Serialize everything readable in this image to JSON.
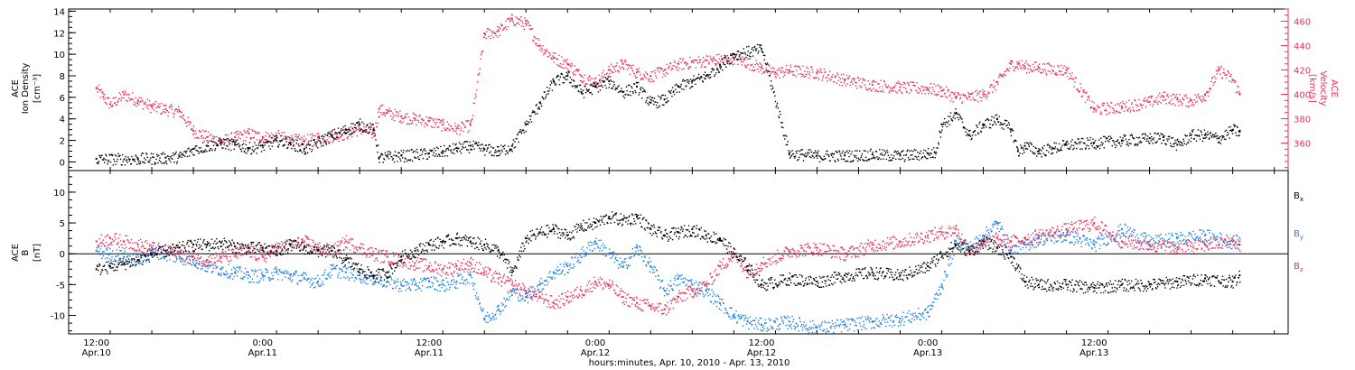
{
  "colors": {
    "black_series": "#000000",
    "velocity": "#e8315f",
    "by": "#1a7fe0",
    "bz": "#e8315f",
    "frame": "#000000"
  },
  "chart_data": [
    {
      "type": "scatter",
      "panel": "top",
      "ylabel_left": [
        "ACE",
        "Ion Density",
        "[cm⁻³]"
      ],
      "ylabel_right": [
        "ACE",
        "Velocity",
        "[km/s]"
      ],
      "xlim_hours": [
        -2,
        86
      ],
      "ylim_left": [
        -0.8,
        14.2
      ],
      "ylim_right": [
        337.5,
        470
      ],
      "yticks_left": [
        "0",
        "2",
        "4",
        "6",
        "8",
        "10",
        "12",
        "14"
      ],
      "yticks_right": [
        "360",
        "380",
        "400",
        "420",
        "440",
        "460"
      ],
      "grid": false,
      "series": [
        {
          "axis": "left",
          "color": "#000000",
          "x": [
            0,
            3,
            5,
            6,
            7,
            8,
            9,
            10,
            11,
            12,
            13,
            14,
            15,
            17,
            18,
            19,
            20,
            20.4,
            21,
            22,
            24,
            25,
            26,
            27,
            28,
            29,
            30,
            31,
            32,
            33,
            34,
            35,
            36,
            37,
            38,
            39,
            40,
            41,
            42,
            43,
            44,
            45,
            46,
            48,
            50,
            52,
            54,
            56,
            58,
            60,
            60.5,
            61,
            62,
            63,
            64,
            65,
            66,
            66.5,
            67,
            68,
            69,
            70,
            72,
            74,
            76,
            77,
            78,
            79,
            80,
            81,
            82,
            82.5
          ],
          "y": [
            0.3,
            0.3,
            0.4,
            0.5,
            1.2,
            1.5,
            1.8,
            1.6,
            1.3,
            1.5,
            2.0,
            1.8,
            1.2,
            2.5,
            3.0,
            3.5,
            3.0,
            0.4,
            0.5,
            0.6,
            0.8,
            1.0,
            1.3,
            1.5,
            1.2,
            1.0,
            1.5,
            3.5,
            5.5,
            7.5,
            8.0,
            6.5,
            7.0,
            7.5,
            6.5,
            7.0,
            5.5,
            5.8,
            7.0,
            7.5,
            8.0,
            9.0,
            10.0,
            10.5,
            0.8,
            0.6,
            0.6,
            0.7,
            0.6,
            0.8,
            0.9,
            3.5,
            4.5,
            2.5,
            3.5,
            4.0,
            3.0,
            1.0,
            1.5,
            1.0,
            1.3,
            1.6,
            1.8,
            2.0,
            2.2,
            2.3,
            1.6,
            2.5,
            2.5,
            2.2,
            3.0,
            2.8
          ]
        },
        {
          "axis": "right",
          "color": "#e8315f",
          "x": [
            0,
            0.5,
            1,
            2,
            3,
            4,
            5,
            6,
            7,
            8,
            9,
            10,
            11,
            12,
            13,
            14,
            15,
            16,
            17,
            18,
            19,
            20,
            20.4,
            21,
            22,
            23,
            24,
            25,
            26,
            27,
            28,
            29,
            30,
            31,
            32,
            33,
            34,
            35,
            36,
            37,
            38,
            39,
            40,
            41,
            42,
            44,
            46,
            48,
            49,
            50,
            52,
            54,
            56,
            58,
            60,
            61,
            62,
            63,
            64,
            65,
            66,
            66.5,
            67,
            68,
            70,
            72,
            74,
            76,
            77,
            78,
            79,
            80,
            81,
            82,
            82.5
          ],
          "y": [
            405,
            398,
            392,
            400,
            395,
            390,
            388,
            386,
            370,
            365,
            362,
            365,
            368,
            365,
            366,
            363,
            362,
            365,
            366,
            368,
            372,
            368,
            388,
            385,
            382,
            380,
            378,
            375,
            372,
            375,
            450,
            452,
            462,
            458,
            440,
            430,
            425,
            415,
            410,
            420,
            425,
            418,
            415,
            420,
            425,
            428,
            430,
            422,
            418,
            420,
            418,
            412,
            408,
            406,
            405,
            403,
            398,
            398,
            400,
            410,
            425,
            425,
            423,
            422,
            420,
            388,
            390,
            394,
            398,
            396,
            395,
            400,
            420,
            412,
            400
          ]
        }
      ]
    },
    {
      "type": "scatter",
      "panel": "bottom",
      "ylabel_left": [
        "ACE",
        "B",
        "[nT]"
      ],
      "xlim_hours": [
        -2,
        86
      ],
      "ylim_left": [
        -13,
        13.5
      ],
      "yticks_left": [
        "-10",
        "-5",
        "0",
        "5",
        "10"
      ],
      "zero_line": true,
      "grid": false,
      "legend": [
        "Bx",
        "By",
        "Bz"
      ],
      "legend_position": "right",
      "series": [
        {
          "name": "Bx",
          "color": "#000000",
          "x": [
            0,
            1,
            2,
            3,
            4,
            5,
            6,
            7,
            8,
            9,
            10,
            11,
            12,
            13,
            14,
            15,
            16,
            17,
            18,
            19,
            20,
            21,
            22,
            23,
            24,
            25,
            26,
            27,
            28,
            29,
            30,
            31,
            32,
            33,
            34,
            35,
            36,
            37,
            38,
            39,
            40,
            41,
            42,
            43,
            44,
            45,
            46,
            47,
            48,
            50,
            52,
            54,
            56,
            58,
            60,
            61,
            62,
            63,
            64,
            65,
            66,
            67,
            68,
            70,
            72,
            74,
            76,
            78,
            80,
            82,
            82.5
          ],
          "y": [
            -2.5,
            -2.0,
            -1.5,
            -1.0,
            0.0,
            0.5,
            1.0,
            1.5,
            1.5,
            1.8,
            1.2,
            1.0,
            1.0,
            0.5,
            1.5,
            1.0,
            0.5,
            0.5,
            -1.0,
            -2.5,
            -3.5,
            -3.0,
            -0.5,
            0.5,
            1.5,
            2.0,
            2.5,
            2.0,
            1.5,
            0.5,
            -3.0,
            2.5,
            3.5,
            4.0,
            3.0,
            4.5,
            5.0,
            6.0,
            5.5,
            6.0,
            4.0,
            3.0,
            3.5,
            4.0,
            3.0,
            2.5,
            0.0,
            -2.0,
            -5.0,
            -4.0,
            -4.5,
            -3.5,
            -3.0,
            -3.5,
            -2.0,
            0.0,
            1.5,
            0.5,
            2.0,
            1.0,
            -0.5,
            -4.5,
            -5.0,
            -5.0,
            -5.5,
            -5.0,
            -5.0,
            -4.5,
            -4.0,
            -4.5,
            -3.5
          ]
        },
        {
          "name": "By",
          "color": "#1a7fe0",
          "x": [
            0,
            1,
            2,
            3,
            4,
            5,
            6,
            7,
            8,
            9,
            10,
            11,
            12,
            13,
            14,
            15,
            16,
            17,
            18,
            19,
            20,
            21,
            22,
            23,
            24,
            25,
            26,
            27,
            28,
            29,
            30,
            31,
            32,
            33,
            34,
            35,
            36,
            37,
            38,
            39,
            40,
            41,
            42,
            43,
            44,
            45,
            46,
            47,
            48,
            50,
            52,
            54,
            56,
            58,
            60,
            61,
            62,
            63,
            64,
            65,
            66,
            67,
            68,
            70,
            72,
            74,
            76,
            78,
            80,
            82,
            82.5
          ],
          "y": [
            0.5,
            0.0,
            -0.5,
            -1.0,
            0.5,
            0.0,
            -0.5,
            -1.0,
            -2.0,
            -2.5,
            -3.0,
            -3.5,
            -3.5,
            -3.0,
            -3.5,
            -4.0,
            -4.5,
            -2.5,
            -3.0,
            -3.5,
            -4.0,
            -4.5,
            -5.0,
            -5.0,
            -4.5,
            -5.0,
            -4.5,
            -3.5,
            -10.5,
            -9.0,
            -6.0,
            -7.0,
            -5.0,
            -3.0,
            -2.0,
            0.0,
            2.0,
            0.0,
            -2.0,
            1.0,
            -2.0,
            -6.0,
            -4.0,
            -5.0,
            -6.0,
            -8.0,
            -10.0,
            -11.0,
            -11.5,
            -11.0,
            -12.0,
            -11.5,
            -11.0,
            -10.5,
            -9.5,
            -5.0,
            2.0,
            1.0,
            3.0,
            5.0,
            0.5,
            1.5,
            2.5,
            3.0,
            1.5,
            4.0,
            2.0,
            2.5,
            3.0,
            2.0,
            2.0
          ]
        },
        {
          "name": "Bz",
          "color": "#e8315f",
          "x": [
            0,
            1,
            2,
            3,
            4,
            5,
            6,
            7,
            8,
            9,
            10,
            11,
            12,
            13,
            14,
            15,
            16,
            17,
            18,
            19,
            20,
            21,
            22,
            23,
            24,
            25,
            26,
            27,
            28,
            29,
            30,
            31,
            32,
            33,
            34,
            35,
            36,
            37,
            38,
            39,
            40,
            41,
            42,
            43,
            44,
            45,
            46,
            47,
            48,
            50,
            52,
            54,
            56,
            58,
            60,
            61,
            62,
            63,
            64,
            65,
            66,
            67,
            68,
            70,
            72,
            74,
            76,
            78,
            80,
            82,
            82.5
          ],
          "y": [
            2.0,
            2.5,
            2.0,
            1.5,
            1.0,
            0.5,
            0.0,
            -0.5,
            -1.0,
            -0.5,
            0.0,
            0.5,
            -0.5,
            1.0,
            1.5,
            2.0,
            1.0,
            0.5,
            2.0,
            1.0,
            0.0,
            -0.5,
            -1.0,
            -1.5,
            -2.0,
            -2.5,
            -2.0,
            -1.5,
            -3.0,
            -4.0,
            -5.0,
            -6.0,
            -7.0,
            -8.0,
            -7.0,
            -6.0,
            -4.5,
            -5.0,
            -7.0,
            -8.0,
            -8.5,
            -9.0,
            -7.0,
            -6.0,
            -5.0,
            -2.0,
            0.0,
            -3.0,
            -1.5,
            0.5,
            1.0,
            0.0,
            1.5,
            2.0,
            3.0,
            3.5,
            4.0,
            0.5,
            1.5,
            2.5,
            2.0,
            2.5,
            3.0,
            4.0,
            5.0,
            2.0,
            1.5,
            1.0,
            1.5,
            2.0,
            1.5
          ]
        }
      ]
    }
  ],
  "x_axis": {
    "ticks": [
      {
        "h": 0,
        "time": "12:00",
        "date": "Apr.10"
      },
      {
        "h": 12,
        "time": "0:00",
        "date": "Apr.11"
      },
      {
        "h": 24,
        "time": "12:00",
        "date": "Apr.11"
      },
      {
        "h": 36,
        "time": "0:00",
        "date": "Apr.12"
      },
      {
        "h": 48,
        "time": "12:00",
        "date": "Apr.12"
      },
      {
        "h": 60,
        "time": "0:00",
        "date": "Apr.13"
      },
      {
        "h": 72,
        "time": "12:00",
        "date": "Apr.13"
      }
    ],
    "label": "hours:minutes, Apr. 10, 2010 - Apr. 13, 2010"
  },
  "legend_labels": {
    "bx": "B",
    "bx_sub": "x",
    "by": "B",
    "by_sub": "y",
    "bz": "B",
    "bz_sub": "z"
  }
}
